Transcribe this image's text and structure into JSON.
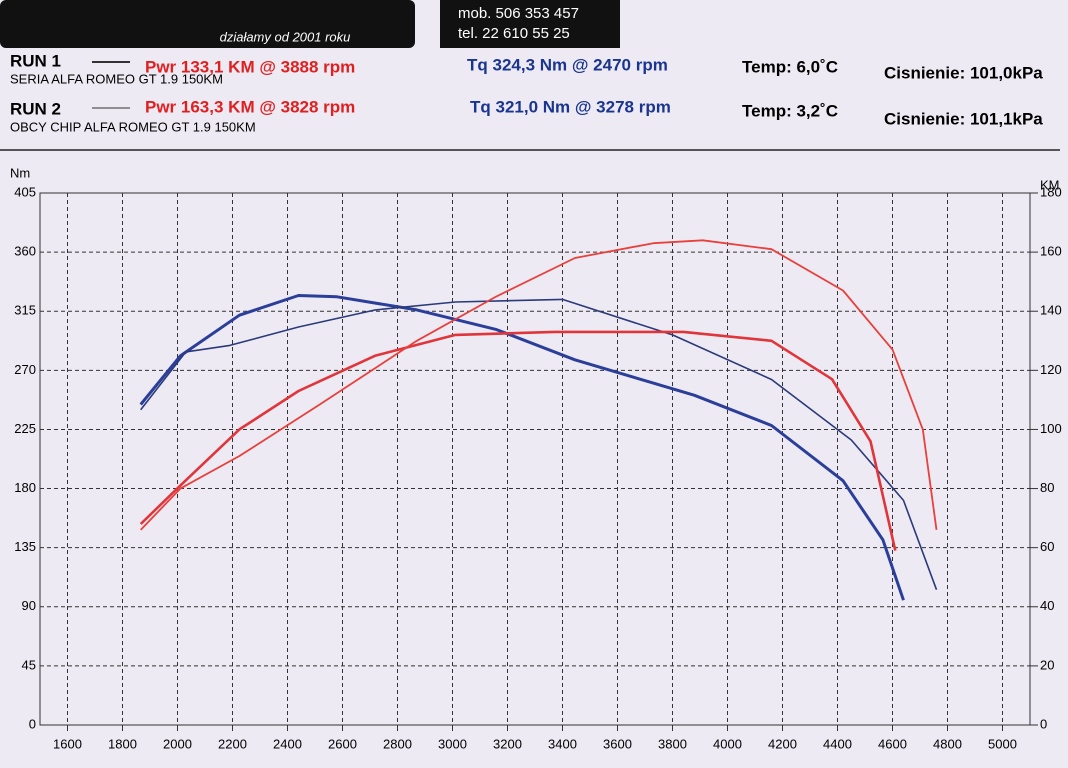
{
  "header": {
    "tagline": "działamy od 2001 roku",
    "mobile": "mob. 506 353 457",
    "phone": "tel. 22 610 55 25"
  },
  "runs": [
    {
      "label": "RUN 1",
      "description": "SERIA ALFA ROMEO GT 1.9 150KM",
      "power": "Pwr 133,1 KM @ 3888 rpm",
      "torque": "Tq 324,3 Nm @ 2470 rpm",
      "temp": "Temp: 6,0˚C",
      "pressure": "Cisnienie: 101,0kPa"
    },
    {
      "label": "RUN 2",
      "description": "OBCY CHIP ALFA ROMEO GT 1.9 150KM",
      "power": "Pwr 163,3 KM @ 3828 rpm",
      "torque": "Tq 321,0 Nm @ 3278 rpm",
      "temp": "Temp: 3,2˚C",
      "pressure": "Cisnienie: 101,1kPa"
    }
  ],
  "chart_data": {
    "type": "line",
    "y_label": "Nm",
    "y2_label": "KM",
    "xlim": [
      1500,
      5100
    ],
    "xticks": [
      1600,
      1800,
      2000,
      2200,
      2400,
      2600,
      2800,
      3000,
      3200,
      3400,
      3600,
      3800,
      4000,
      4200,
      4400,
      4600,
      4800,
      5000
    ],
    "ylim": [
      0,
      405
    ],
    "yticks": [
      0,
      45,
      90,
      135,
      180,
      225,
      270,
      315,
      360,
      405
    ],
    "y2lim": [
      0,
      180
    ],
    "y2ticks": [
      0,
      20,
      40,
      60,
      80,
      100,
      120,
      140,
      160,
      180
    ],
    "grid": true,
    "series": [
      {
        "color": "#2b3f9a",
        "line_width": 3,
        "x": [
          1866,
          2010,
          2225,
          2440,
          2580,
          2870,
          3160,
          3445,
          3880,
          4160,
          4420,
          4565,
          4640
        ],
        "values": [
          244,
          281,
          312,
          327,
          326,
          316,
          301,
          278,
          251,
          228,
          186,
          141,
          95
        ]
      },
      {
        "color": "#2b3a7a",
        "line_width": 1.6,
        "x": [
          1866,
          2030,
          2190,
          2440,
          2720,
          3010,
          3400,
          3800,
          4160,
          4450,
          4640,
          4760
        ],
        "values": [
          240,
          284,
          289,
          303,
          316,
          322,
          324,
          297,
          263,
          217,
          171,
          103
        ]
      },
      {
        "color": "#e0353a",
        "line_width": 2.6,
        "axis": "y2",
        "x": [
          1866,
          2010,
          2225,
          2440,
          2720,
          3010,
          3370,
          3840,
          4160,
          4380,
          4520,
          4610
        ],
        "values": [
          68,
          81,
          100,
          113,
          125,
          132,
          133,
          133,
          130,
          117,
          96,
          59
        ]
      },
      {
        "color": "#e8403c",
        "line_width": 1.8,
        "axis": "y2",
        "x": [
          1866,
          2010,
          2225,
          2510,
          2870,
          3160,
          3445,
          3730,
          3910,
          4160,
          4420,
          4600,
          4710,
          4760
        ],
        "values": [
          66,
          80,
          91,
          108,
          130,
          145,
          158,
          163,
          164,
          161,
          147,
          127,
          100,
          66
        ]
      }
    ]
  }
}
